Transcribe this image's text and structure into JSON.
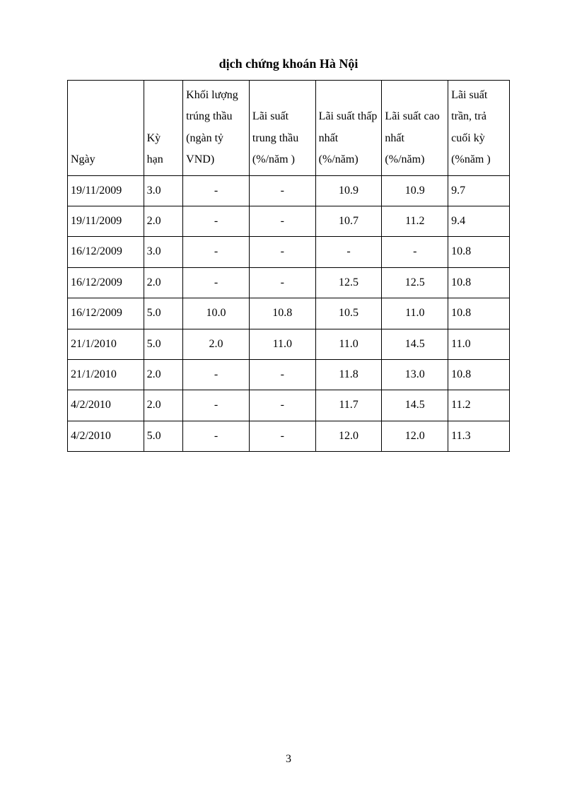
{
  "title": "dịch chứng khoán Hà Nội",
  "page_number": "3",
  "table": {
    "border_color": "#000000",
    "background_color": "#ffffff",
    "font_family": "Times New Roman",
    "header_fontsize": 16,
    "cell_fontsize": 16,
    "col_widths_pct": [
      15.5,
      8,
      13.5,
      13.5,
      13.5,
      13.5,
      12.5
    ],
    "columns": [
      "Ngày",
      "Kỳ hạn",
      "Khối lượng trúng thầu (ngàn tỷ VND)",
      "Lãi suất trung thầu (%/năm )",
      "Lãi suất thấp nhất (%/năm)",
      "Lãi suất cao nhất (%/năm)",
      "Lãi suất trần, trả cuối kỳ (%năm )"
    ],
    "rows": [
      {
        "c0": "19/11/2009",
        "c1": "3.0",
        "c2": "-",
        "c3": "-",
        "c4": "10.9",
        "c5": "10.9",
        "c6": "9.7"
      },
      {
        "c0": "19/11/2009",
        "c1": "2.0",
        "c2": "-",
        "c3": "-",
        "c4": "10.7",
        "c5": "11.2",
        "c6": "9.4"
      },
      {
        "c0": "16/12/2009",
        "c1": "3.0",
        "c2": "-",
        "c3": "-",
        "c4": "-",
        "c5": "-",
        "c6": "10.8"
      },
      {
        "c0": "16/12/2009",
        "c1": "2.0",
        "c2": "-",
        "c3": "-",
        "c4": "12.5",
        "c5": "12.5",
        "c6": "10.8"
      },
      {
        "c0": "16/12/2009",
        "c1": "5.0",
        "c2": "10.0",
        "c3": "10.8",
        "c4": "10.5",
        "c5": "11.0",
        "c6": "10.8"
      },
      {
        "c0": "21/1/2010",
        "c1": "5.0",
        "c2": "2.0",
        "c3": "11.0",
        "c4": "11.0",
        "c5": "14.5",
        "c6": "11.0"
      },
      {
        "c0": "21/1/2010",
        "c1": "2.0",
        "c2": "-",
        "c3": "-",
        "c4": "11.8",
        "c5": "13.0",
        "c6": "10.8"
      },
      {
        "c0": "4/2/2010",
        "c1": "2.0",
        "c2": "-",
        "c3": "-",
        "c4": "11.7",
        "c5": "14.5",
        "c6": "11.2"
      },
      {
        "c0": "4/2/2010",
        "c1": "5.0",
        "c2": "-",
        "c3": "-",
        "c4": "12.0",
        "c5": "12.0",
        "c6": "11.3"
      }
    ]
  }
}
